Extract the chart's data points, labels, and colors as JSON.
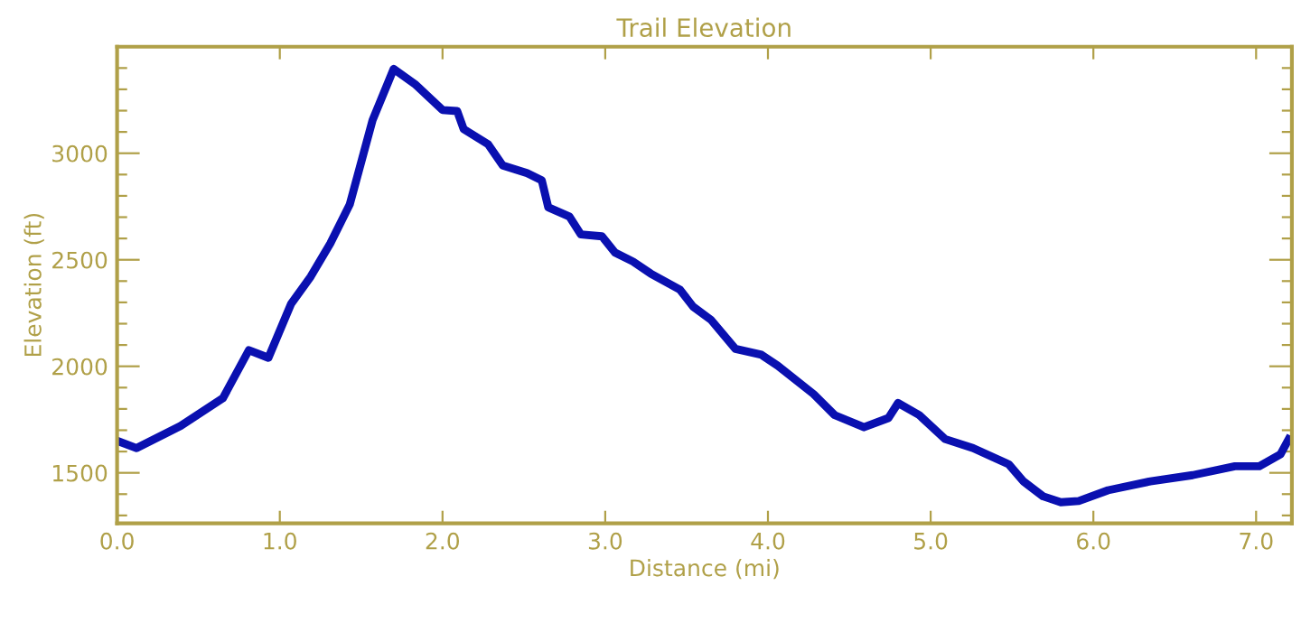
{
  "chart_data": {
    "type": "line",
    "title": "Trail Elevation",
    "xlabel": "Distance (mi)",
    "ylabel": "Elevation (ft)",
    "xlim": [
      0,
      7.22
    ],
    "ylim": [
      1263,
      3500
    ],
    "xticks": [
      {
        "value": 0,
        "label": "0.0"
      },
      {
        "value": 1,
        "label": "1.0"
      },
      {
        "value": 2,
        "label": "2.0"
      },
      {
        "value": 3,
        "label": "3.0"
      },
      {
        "value": 4,
        "label": "4.0"
      },
      {
        "value": 5,
        "label": "5.0"
      },
      {
        "value": 6,
        "label": "6.0"
      },
      {
        "value": 7,
        "label": "7.0"
      }
    ],
    "yticks": [
      {
        "value": 1300,
        "label": null
      },
      {
        "value": 1400,
        "label": null
      },
      1500,
      {
        "value": 1600,
        "label": null
      },
      {
        "value": 1700,
        "label": null
      },
      {
        "value": 1800,
        "label": null
      },
      {
        "value": 1900,
        "label": null
      },
      2000,
      {
        "value": 2100,
        "label": null
      },
      {
        "value": 2200,
        "label": null
      },
      {
        "value": 2300,
        "label": null
      },
      {
        "value": 2400,
        "label": null
      },
      2500,
      {
        "value": 2600,
        "label": null
      },
      {
        "value": 2700,
        "label": null
      },
      {
        "value": 2800,
        "label": null
      },
      {
        "value": 2900,
        "label": null
      },
      3000,
      {
        "value": 3100,
        "label": null
      },
      {
        "value": 3200,
        "label": null
      },
      {
        "value": 3300,
        "label": null
      },
      {
        "value": 3400,
        "label": null
      }
    ],
    "grid": false,
    "marker": "none",
    "line_style": "solid",
    "series": [
      {
        "color": "#0a10b0",
        "x": [
          0,
          0.12,
          0.39,
          0.65,
          0.81,
          0.93,
          1.07,
          1.19,
          1.31,
          1.43,
          1.57,
          1.7,
          1.83,
          2.0,
          2.09,
          2.13,
          2.28,
          2.37,
          2.52,
          2.61,
          2.65,
          2.78,
          2.85,
          2.98,
          3.06,
          3.17,
          3.28,
          3.46,
          3.54,
          3.65,
          3.8,
          3.96,
          4.06,
          4.28,
          4.41,
          4.59,
          4.74,
          4.8,
          4.93,
          5.09,
          5.26,
          5.48,
          5.57,
          5.69,
          5.8,
          5.91,
          6.09,
          6.35,
          6.61,
          6.87,
          7.02,
          7.15,
          7.2
        ],
        "values": [
          1650,
          1616,
          1720,
          1850,
          2076,
          2040,
          2294,
          2421,
          2576,
          2760,
          3155,
          3396,
          3325,
          3203,
          3198,
          3113,
          3042,
          2943,
          2907,
          2873,
          2746,
          2703,
          2619,
          2610,
          2534,
          2492,
          2435,
          2359,
          2280,
          2218,
          2082,
          2054,
          2003,
          1870,
          1771,
          1714,
          1757,
          1828,
          1771,
          1658,
          1616,
          1540,
          1460,
          1390,
          1362,
          1368,
          1418,
          1460,
          1489,
          1531,
          1531,
          1587,
          1658
        ]
      }
    ]
  }
}
